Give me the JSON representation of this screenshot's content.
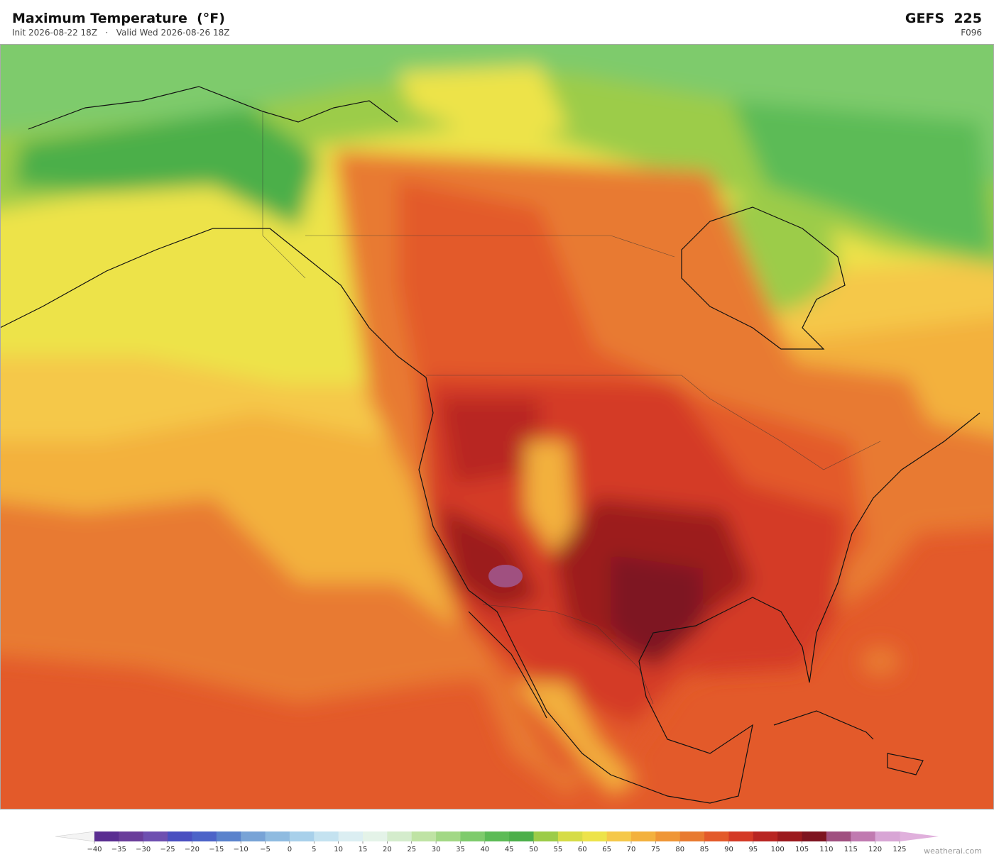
{
  "header": {
    "title": "Maximum Temperature  (°F)",
    "subtitle": "Init 2026-08-22 18Z   ·   Valid Wed 2026-08-26 18Z",
    "model": "GEFS  225",
    "forecast_hour": "F096"
  },
  "colorbar": {
    "ticks": [
      {
        "value": -40,
        "label": "−40"
      },
      {
        "value": -35,
        "label": "−35"
      },
      {
        "value": -30,
        "label": "−30"
      },
      {
        "value": -25,
        "label": "−25"
      },
      {
        "value": -20,
        "label": "−20"
      },
      {
        "value": -15,
        "label": "−15"
      },
      {
        "value": -10,
        "label": "−10"
      },
      {
        "value": -5,
        "label": "−5"
      },
      0,
      5,
      10,
      15,
      20,
      25,
      30,
      35,
      40,
      45,
      50,
      55,
      60,
      65,
      70,
      75,
      80,
      85,
      90,
      95,
      100,
      105,
      110,
      115,
      120,
      125
    ],
    "colors": [
      "#5a2d91",
      "#6a3d9a",
      "#6e4fb0",
      "#4a4fc0",
      "#4c63c8",
      "#5a82cc",
      "#78a3d6",
      "#8fbbe0",
      "#a8d0ea",
      "#c4e2f0",
      "#dbeef2",
      "#e4f3e8",
      "#d4eccc",
      "#bfe3a4",
      "#a2d885",
      "#7ecb6c",
      "#5cbb56",
      "#4caf4a",
      "#9ccc48",
      "#d6dc46",
      "#ede34a",
      "#f5c84a",
      "#f3b13e",
      "#ef9636",
      "#e87a30",
      "#e35a2a",
      "#d43a26",
      "#b82522",
      "#9c1a1e",
      "#7e1420",
      "#a05080",
      "#c07ab0",
      "#d8a5d5"
    ],
    "under_color": "#f4f4f4",
    "over_color": "#e0b0dc"
  },
  "watermark": "weatherai.com"
}
